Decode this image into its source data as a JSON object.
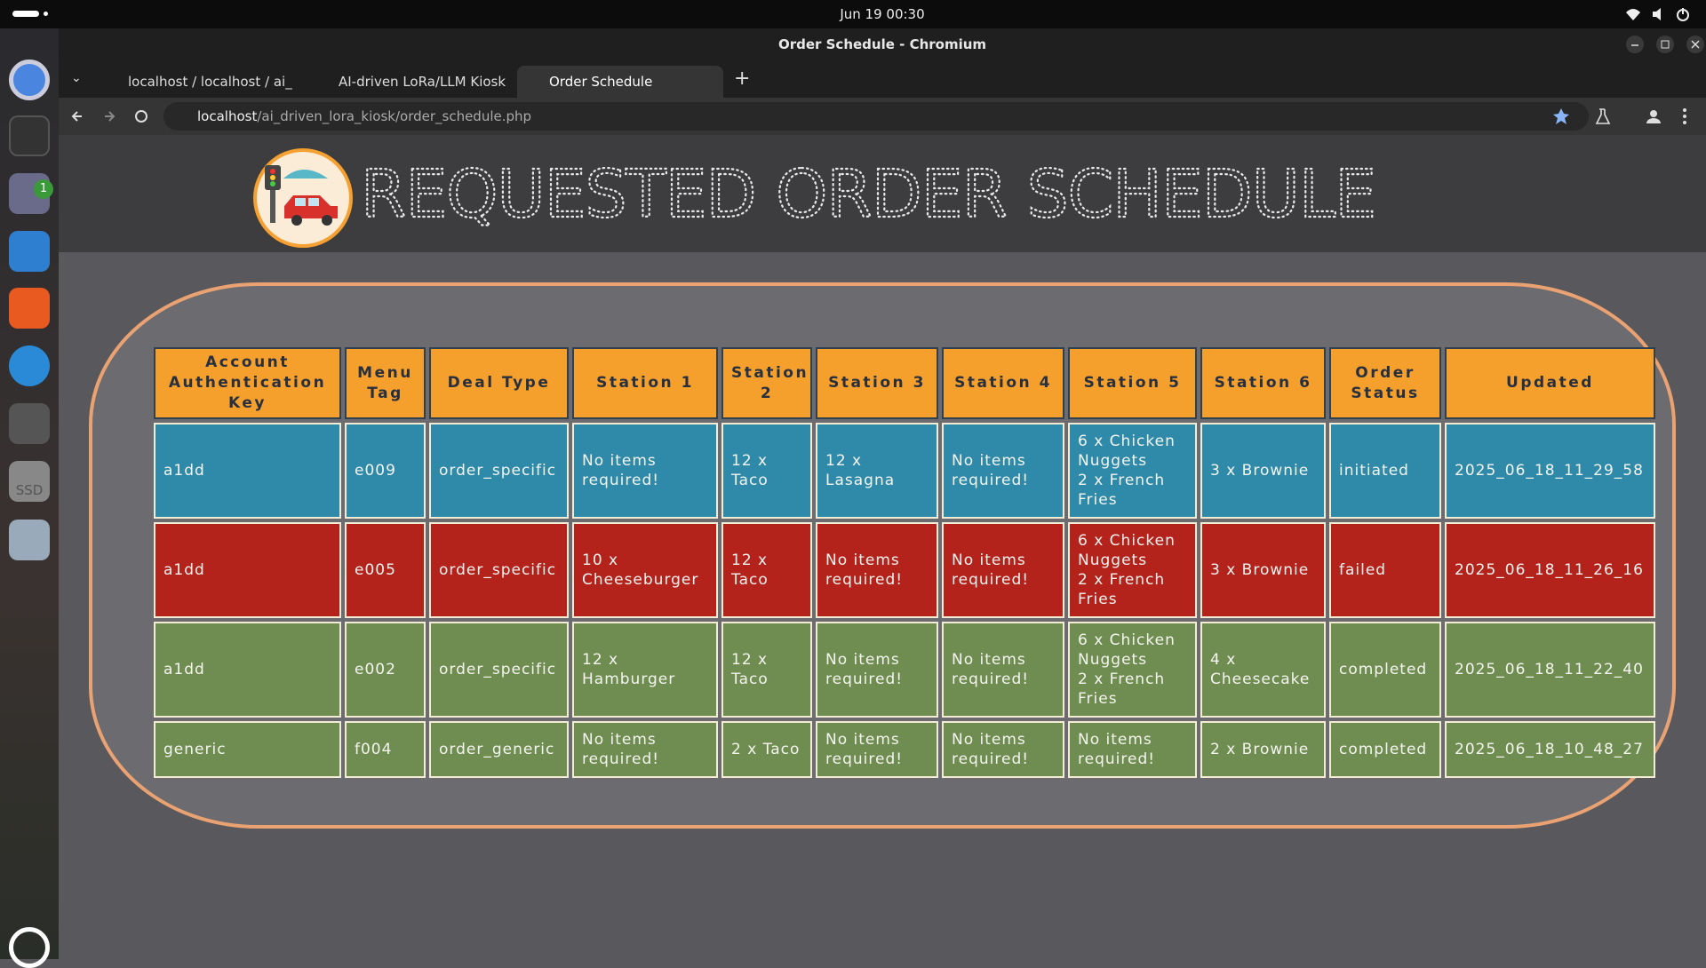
{
  "system": {
    "clock": "Jun 19  00:30",
    "badge": "1",
    "drive": "SSD"
  },
  "browser": {
    "window_title": "Order Schedule - Chromium",
    "tabs": [
      "localhost / localhost / ai_",
      "AI-driven LoRa/LLM Kiosk",
      "Order Schedule"
    ],
    "url_host": "localhost",
    "url_path": "/ai_driven_lora_kiosk/order_schedule.php"
  },
  "page": {
    "title": "REQUESTED ORDER SCHEDULE"
  },
  "table": {
    "headers": [
      "Account\nAuthentication Key",
      "Menu\nTag",
      "Deal Type",
      "Station 1",
      "Station\n2",
      "Station 3",
      "Station 4",
      "Station 5",
      "Station 6",
      "Order\nStatus",
      "Updated"
    ],
    "rows": [
      [
        "a1dd",
        "e009",
        "order_specific",
        "No items required!",
        "12 x Taco",
        "12 x Lasagna",
        "No items required!",
        "6 x Chicken Nuggets\n2 x French Fries",
        "3 x Brownie",
        "initiated",
        "2025_06_18_11_29_58"
      ],
      [
        "a1dd",
        "e005",
        "order_specific",
        "10 x Cheeseburger",
        "12 x Taco",
        "No items required!",
        "No items required!",
        "6 x Chicken Nuggets\n2 x French Fries",
        "3 x Brownie",
        "failed",
        "2025_06_18_11_26_16"
      ],
      [
        "a1dd",
        "e002",
        "order_specific",
        "12 x Hamburger",
        "12 x Taco",
        "No items required!",
        "No items required!",
        "6 x Chicken Nuggets\n2 x French Fries",
        "4 x Cheesecake",
        "completed",
        "2025_06_18_11_22_40"
      ],
      [
        "generic",
        "f004",
        "order_generic",
        "No items required!",
        "2 x Taco",
        "No items required!",
        "No items required!",
        "No items required!",
        "2 x Brownie",
        "completed",
        "2025_06_18_10_48_27"
      ]
    ]
  }
}
